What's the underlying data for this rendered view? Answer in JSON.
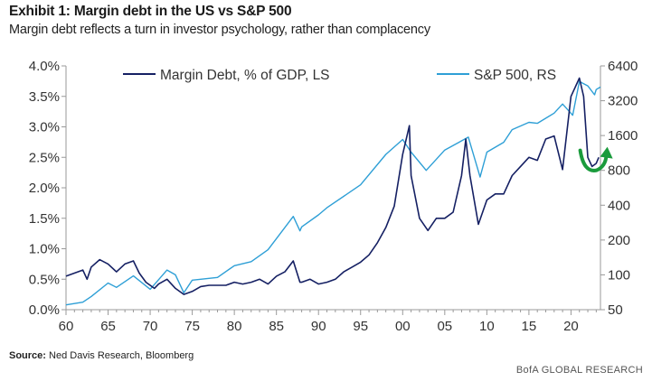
{
  "header": {
    "title": "Exhibit 1: Margin debt in the US vs S&P 500",
    "subtitle": "Margin debt reflects a turn in investor psychology, rather than complacency"
  },
  "footer": {
    "source_label": "Source:",
    "source_text": "Ned Davis Research, Bloomberg",
    "brand": "BofA GLOBAL RESEARCH"
  },
  "colors": {
    "margin_debt": "#152063",
    "sp500": "#2e9fd6",
    "annotation_arrow": "#1a9b3c",
    "axis": "#999999"
  },
  "chart_data": {
    "type": "line",
    "legend": [
      "Margin Debt, % of GDP, LS",
      "S&P 500, RS"
    ],
    "legend_placement": "top",
    "grid": false,
    "x_tick_labels": [
      "60",
      "65",
      "70",
      "75",
      "80",
      "85",
      "90",
      "95",
      "00",
      "05",
      "10",
      "15",
      "20"
    ],
    "x_ticks": [
      1960,
      1965,
      1970,
      1975,
      1980,
      1985,
      1990,
      1995,
      2000,
      2005,
      2010,
      2015,
      2020
    ],
    "xlim": [
      1960,
      2023.5
    ],
    "y_left": {
      "scale": "linear",
      "ylim": [
        0.0,
        4.0
      ],
      "ticks": [
        0.0,
        0.5,
        1.0,
        1.5,
        2.0,
        2.5,
        3.0,
        3.5,
        4.0
      ],
      "tick_labels": [
        "0.0%",
        "0.5%",
        "1.0%",
        "1.5%",
        "2.0%",
        "2.5%",
        "3.0%",
        "3.5%",
        "4.0%"
      ]
    },
    "y_right": {
      "scale": "log",
      "ylim": [
        50,
        6400
      ],
      "ticks": [
        50,
        100,
        200,
        400,
        800,
        1600,
        3200,
        6400
      ],
      "tick_labels": [
        "50",
        "100",
        "200",
        "400",
        "800",
        "1600",
        "3200",
        "6400"
      ]
    },
    "series": [
      {
        "name": "Margin Debt, % of GDP, LS",
        "axis": "left",
        "x": [
          1960,
          1962,
          1962.5,
          1963,
          1964,
          1965,
          1966,
          1967,
          1968,
          1968.7,
          1969.5,
          1970.5,
          1971,
          1972,
          1973,
          1974,
          1975,
          1976,
          1977,
          1978,
          1979,
          1980,
          1981,
          1982,
          1983,
          1984,
          1985,
          1986,
          1987,
          1987.8,
          1988,
          1989,
          1990,
          1991,
          1992,
          1993,
          1994,
          1995,
          1996,
          1997,
          1998,
          1999,
          2000,
          2000.8,
          2001,
          2002,
          2003,
          2004,
          2005,
          2006,
          2007,
          2007.5,
          2008,
          2009,
          2010,
          2011,
          2012,
          2013,
          2014,
          2015,
          2016,
          2017,
          2018,
          2019,
          2020,
          2021,
          2021.5,
          2022,
          2022.5,
          2023,
          2023.3
        ],
        "y": [
          0.55,
          0.65,
          0.5,
          0.7,
          0.82,
          0.75,
          0.62,
          0.75,
          0.8,
          0.6,
          0.45,
          0.35,
          0.42,
          0.5,
          0.35,
          0.25,
          0.3,
          0.38,
          0.4,
          0.4,
          0.4,
          0.45,
          0.42,
          0.45,
          0.5,
          0.42,
          0.55,
          0.62,
          0.8,
          0.45,
          0.45,
          0.5,
          0.42,
          0.45,
          0.5,
          0.62,
          0.7,
          0.78,
          0.9,
          1.1,
          1.35,
          1.7,
          2.55,
          3.02,
          2.2,
          1.5,
          1.3,
          1.5,
          1.5,
          1.6,
          2.2,
          2.8,
          2.2,
          1.4,
          1.8,
          1.9,
          1.9,
          2.2,
          2.35,
          2.5,
          2.45,
          2.8,
          2.85,
          2.3,
          3.5,
          3.8,
          3.5,
          2.5,
          2.35,
          2.4,
          2.5
        ]
      },
      {
        "name": "S&P 500, RS",
        "axis": "right",
        "x": [
          1960,
          1962,
          1963,
          1965,
          1966,
          1968,
          1970,
          1972,
          1973,
          1974,
          1975,
          1978,
          1980,
          1982,
          1984,
          1987,
          1987.8,
          1988,
          1990,
          1991,
          1995,
          1998,
          2000,
          2001,
          2002.8,
          2005,
          2007.8,
          2009.2,
          2010,
          2012,
          2013,
          2015,
          2016,
          2018,
          2019,
          2020.2,
          2021,
          2022,
          2022.8,
          2023,
          2023.5
        ],
        "y": [
          55,
          58,
          65,
          85,
          78,
          98,
          75,
          110,
          100,
          70,
          90,
          95,
          120,
          130,
          165,
          320,
          240,
          260,
          330,
          380,
          600,
          1100,
          1480,
          1150,
          800,
          1200,
          1550,
          700,
          1150,
          1400,
          1800,
          2080,
          2040,
          2500,
          3000,
          2400,
          4700,
          4300,
          3600,
          4000,
          4200
        ]
      }
    ]
  }
}
